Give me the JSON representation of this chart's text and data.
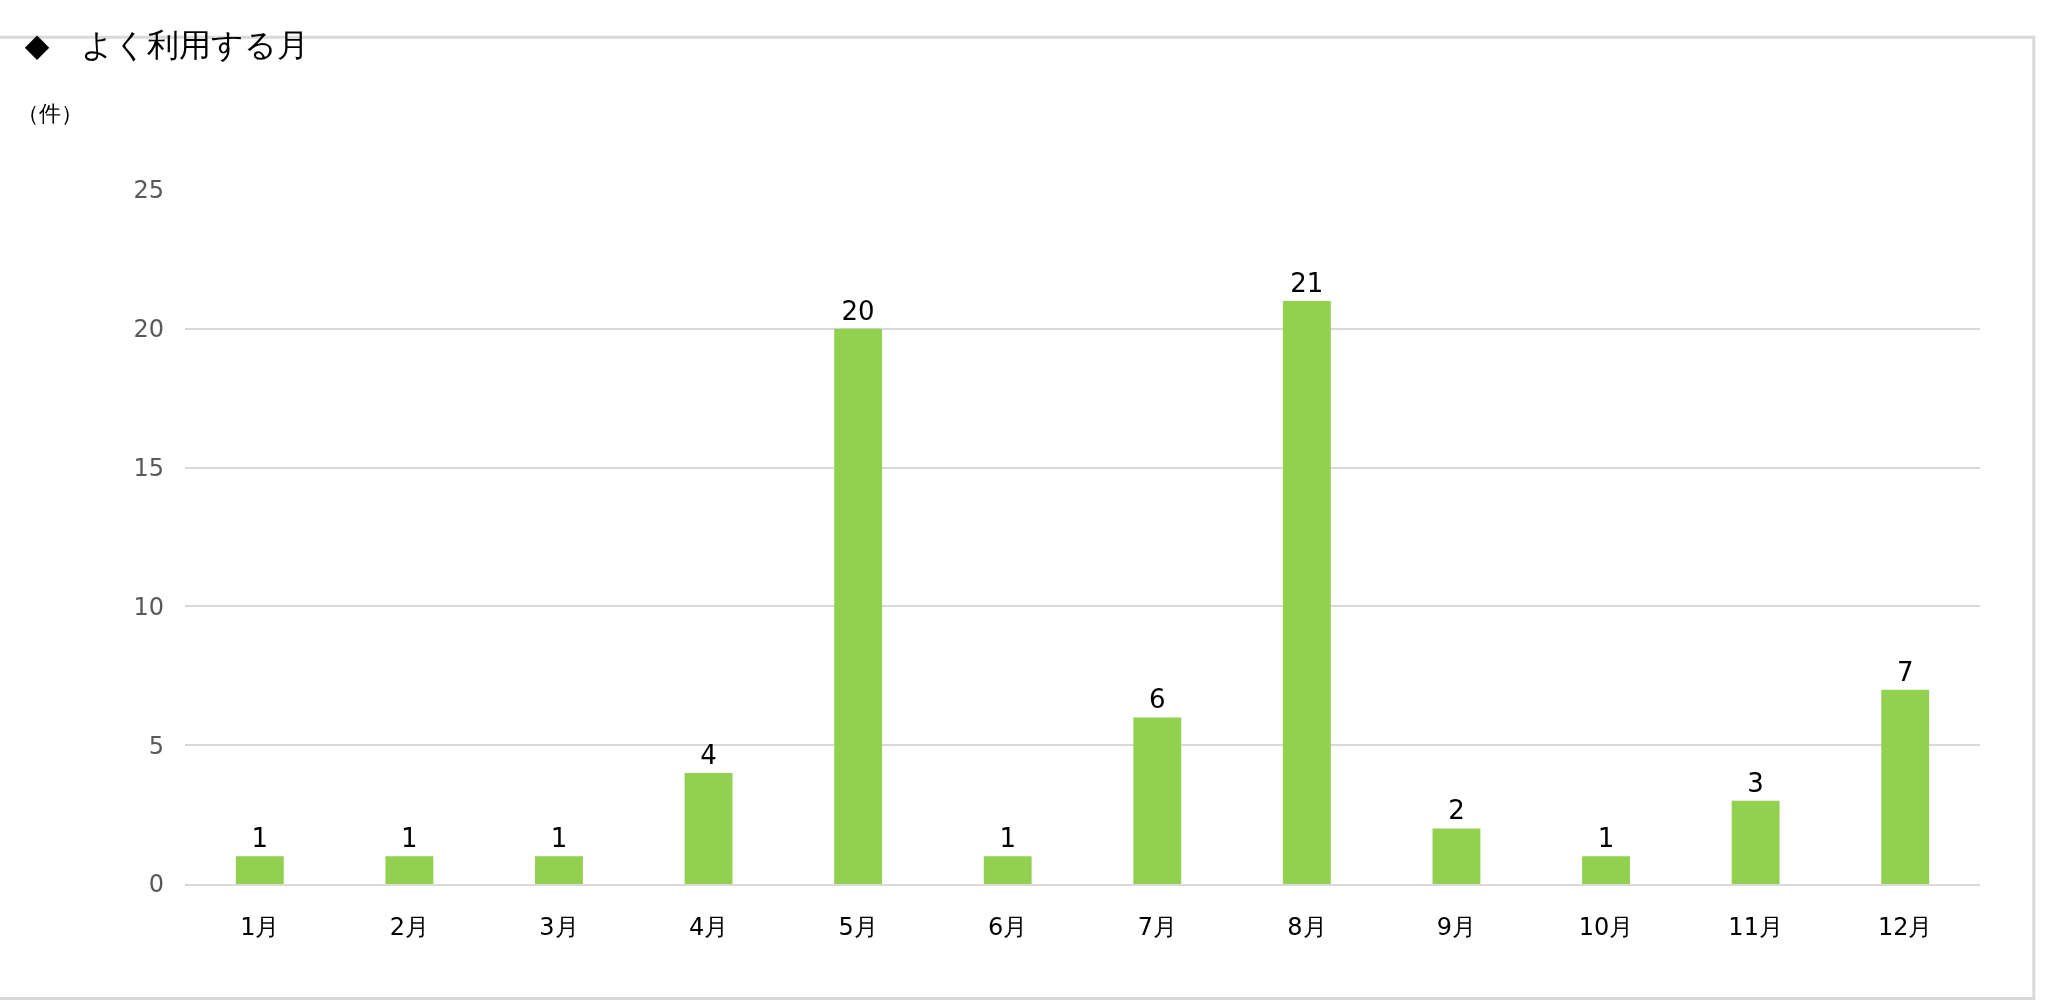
{
  "chart_data": {
    "type": "bar",
    "title": "◆　よく利用する月",
    "ylabel": "（件）",
    "categories": [
      "1月",
      "2月",
      "3月",
      "4月",
      "5月",
      "6月",
      "7月",
      "8月",
      "9月",
      "10月",
      "11月",
      "12月"
    ],
    "values": [
      1,
      1,
      1,
      4,
      20,
      1,
      6,
      21,
      2,
      1,
      3,
      7
    ],
    "color": "#92d050",
    "ylim": [
      0,
      25
    ],
    "yticks": [
      0,
      5,
      10,
      15,
      20,
      25
    ],
    "grid": "y",
    "data_labels": true
  }
}
